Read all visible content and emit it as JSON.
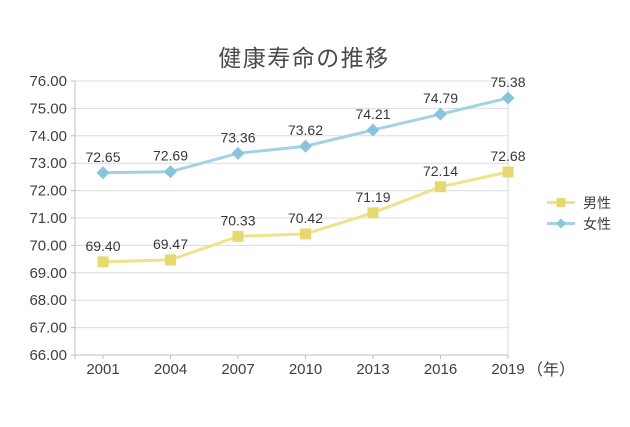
{
  "page": {
    "background": "#ffffff"
  },
  "chart_data": {
    "type": "line",
    "title": "健康寿命の推移",
    "categories": [
      "2001",
      "2004",
      "2007",
      "2010",
      "2013",
      "2016",
      "2019"
    ],
    "x_axis_unit_label": "（年）",
    "y_tick_labels": [
      "76.00",
      "75.00",
      "74.00",
      "73.00",
      "72.00",
      "71.00",
      "70.00",
      "69.00",
      "68.00",
      "67.00",
      "66.00"
    ],
    "ylim": [
      66,
      76
    ],
    "y_step": 1,
    "grid": true,
    "legend_position": "right",
    "series": [
      {
        "key": "male",
        "name": "男性",
        "marker": "square",
        "line_color": "#efe38a",
        "marker_color": "#e6d96f",
        "values": [
          69.4,
          69.47,
          70.33,
          70.42,
          71.19,
          72.14,
          72.68
        ],
        "data_labels": [
          "69.40",
          "69.47",
          "70.33",
          "70.42",
          "71.19",
          "72.14",
          "72.68"
        ]
      },
      {
        "key": "female",
        "name": "女性",
        "marker": "diamond",
        "line_color": "#a2d2e3",
        "marker_color": "#8ac4da",
        "values": [
          72.65,
          72.69,
          73.36,
          73.62,
          74.21,
          74.79,
          75.38
        ],
        "data_labels": [
          "72.65",
          "72.69",
          "73.36",
          "73.62",
          "74.21",
          "74.79",
          "75.38"
        ]
      }
    ],
    "colors": {
      "grid_line": "#dcdcdc",
      "axis_line": "#bfbfbf",
      "plot_right_border": "#d9d9d9",
      "tick_label_text": "#3f3f3f",
      "data_label_text": "#383838",
      "title_text": "#4a4a4a"
    }
  }
}
